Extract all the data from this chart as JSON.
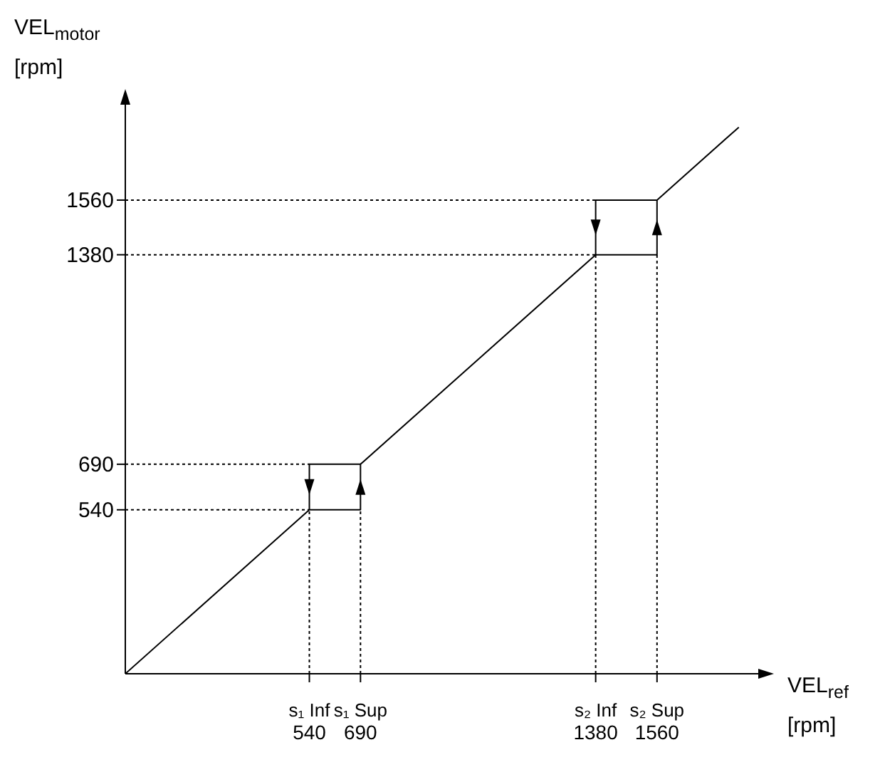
{
  "chart_data": {
    "type": "line",
    "xlabel": "VEL$_{ref}$\n[rpm]",
    "ylabel": "VEL$_{motor}$\n[rpm]",
    "xlim": [
      0,
      1880
    ],
    "ylim": [
      0,
      1900
    ],
    "xticks": [
      540,
      690,
      1380,
      1560
    ],
    "yticks": [
      540,
      690,
      1380,
      1560
    ],
    "annotations": [
      {
        "text": "s₁ Inf",
        "x": 540,
        "y": 0
      },
      {
        "text": "s₁ Sup",
        "x": 690,
        "y": 0
      },
      {
        "text": "s₂ Inf",
        "x": 1380,
        "y": 0
      },
      {
        "text": "s₂ Sup",
        "x": 1560,
        "y": 0
      }
    ],
    "marker": "none",
    "series": [
      {
        "color": "#000000",
        "line_style": "solid",
        "x": [
          0,
          540,
          690,
          690,
          1380,
          1560,
          1560,
          1800
        ],
        "values": [
          0,
          540,
          540,
          690,
          1380,
          1380,
          1560,
          1800
        ]
      },
      {
        "color": "#000000",
        "line_style": "solid",
        "x": [
          690,
          540,
          540
        ],
        "values": [
          690,
          690,
          540
        ]
      },
      {
        "color": "#000000",
        "line_style": "solid",
        "x": [
          1560,
          1380,
          1380
        ],
        "values": [
          1560,
          1560,
          1380
        ]
      },
      {
        "color": "#000000",
        "line_style": "dotted",
        "x": [
          0,
          540
        ],
        "values": [
          690,
          690
        ]
      },
      {
        "color": "#000000",
        "line_style": "dotted",
        "x": [
          0,
          540
        ],
        "values": [
          540,
          540
        ]
      },
      {
        "color": "#000000",
        "line_style": "dotted",
        "x": [
          540,
          540
        ],
        "values": [
          0,
          540
        ]
      },
      {
        "color": "#000000",
        "line_style": "dotted",
        "x": [
          690,
          690
        ],
        "values": [
          0,
          540
        ]
      },
      {
        "color": "#000000",
        "line_style": "dotted",
        "x": [
          0,
          1380
        ],
        "values": [
          1560,
          1560
        ]
      },
      {
        "color": "#000000",
        "line_style": "dotted",
        "x": [
          0,
          1380
        ],
        "values": [
          1380,
          1380
        ]
      },
      {
        "color": "#000000",
        "line_style": "dotted",
        "x": [
          1380,
          1380
        ],
        "values": [
          0,
          1380
        ]
      },
      {
        "color": "#000000",
        "line_style": "dotted",
        "x": [
          1560,
          1560
        ],
        "values": [
          0,
          1380
        ]
      }
    ]
  }
}
